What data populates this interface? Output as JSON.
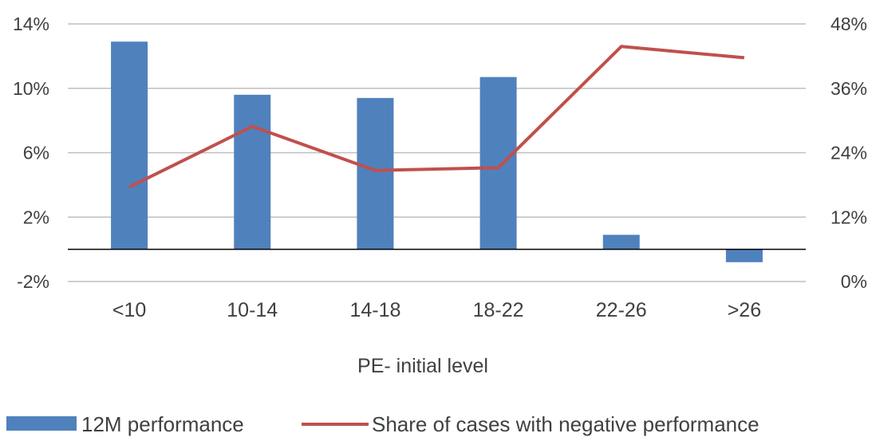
{
  "chart_data": {
    "type": "bar",
    "xlabel": "PE- initial level",
    "categories": [
      "<10",
      "10-14",
      "14-18",
      "18-22",
      "22-26",
      ">26"
    ],
    "series": [
      {
        "name": "12M performance",
        "type": "bar",
        "axis": "left",
        "color": "#4F81BD",
        "values": [
          12.9,
          9.6,
          9.4,
          10.7,
          0.9,
          -0.8
        ]
      },
      {
        "name": "Share of cases with negative performance",
        "type": "line",
        "axis": "right",
        "color": "#C0504D",
        "values": [
          17.6,
          28.9,
          20.7,
          21.2,
          43.8,
          41.7
        ]
      }
    ],
    "y_left": {
      "ylim": [
        -2,
        14
      ],
      "ticks": [
        -2,
        2,
        6,
        10,
        14
      ],
      "tick_labels": [
        "-2%",
        "2%",
        "6%",
        "10%",
        "14%"
      ]
    },
    "y_right": {
      "ylim": [
        0,
        48
      ],
      "ticks": [
        0,
        12,
        24,
        36,
        48
      ],
      "tick_labels": [
        "0%",
        "12%",
        "24%",
        "36%",
        "48%"
      ]
    },
    "grid": true,
    "legend_position": "bottom"
  }
}
